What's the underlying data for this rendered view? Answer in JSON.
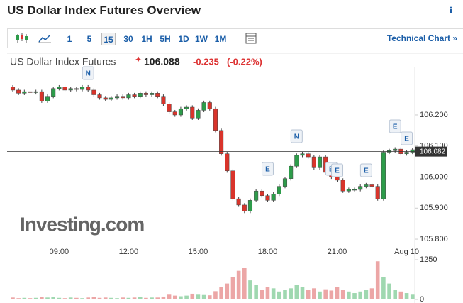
{
  "toolbar": {
    "intervals": [
      "1",
      "5",
      "15",
      "30",
      "1H",
      "5H",
      "1D",
      "1W",
      "1M"
    ],
    "selected": "15",
    "technical_chart": "Technical Chart »"
  },
  "chart_data": {
    "type": "candlestick",
    "title": "US Dollar Index Futures Overview",
    "instrument": "US Dollar Index Futures",
    "price": 106.088,
    "change": -0.235,
    "change_percent": {
      "value": -0.22,
      "label": "(-0.22%)"
    },
    "last_price_label": {
      "value": 106.082,
      "label": "106.082"
    },
    "watermark": "Investing.com",
    "up_color": "#2d9c4a",
    "down_color": "#d9342b",
    "volume_up_color": "#9fd8b0",
    "volume_down_color": "#eca6a6",
    "categories": [
      null,
      null,
      null,
      null,
      null,
      null,
      null,
      null,
      "09:00",
      null,
      null,
      null,
      null,
      null,
      null,
      null,
      null,
      null,
      null,
      null,
      "12:00",
      null,
      null,
      null,
      null,
      null,
      null,
      null,
      null,
      null,
      null,
      null,
      "15:00",
      null,
      null,
      null,
      null,
      null,
      null,
      null,
      null,
      null,
      null,
      null,
      "18:00",
      null,
      null,
      null,
      null,
      null,
      null,
      null,
      null,
      null,
      null,
      null,
      "21:00",
      null,
      null,
      null,
      null,
      null,
      null,
      null,
      null,
      null,
      null,
      null,
      "Aug 10",
      null
    ],
    "open": [
      106.29,
      106.28,
      106.27,
      106.275,
      106.272,
      106.275,
      106.245,
      106.26,
      106.285,
      106.29,
      106.28,
      106.285,
      106.282,
      106.29,
      106.28,
      106.265,
      106.255,
      106.25,
      106.255,
      106.26,
      106.255,
      106.265,
      106.26,
      106.27,
      106.265,
      106.27,
      106.26,
      106.235,
      106.21,
      106.2,
      106.22,
      106.225,
      106.19,
      106.215,
      106.24,
      106.22,
      106.15,
      106.075,
      106.02,
      105.93,
      105.91,
      105.89,
      105.925,
      105.955,
      105.94,
      105.925,
      105.945,
      105.97,
      105.995,
      106.035,
      106.07,
      106.075,
      106.065,
      106.03,
      106.065,
      106.015,
      106.0,
      105.99,
      105.955,
      105.96,
      105.96,
      105.97,
      105.975,
      105.97,
      105.93,
      106.08,
      106.085,
      106.09,
      106.075,
      106.08
    ],
    "high": [
      106.296,
      106.286,
      106.281,
      106.281,
      106.281,
      106.281,
      106.266,
      106.291,
      106.296,
      106.296,
      106.291,
      106.291,
      106.296,
      106.296,
      106.286,
      106.271,
      106.261,
      106.261,
      106.266,
      106.266,
      106.271,
      106.271,
      106.276,
      106.276,
      106.276,
      106.276,
      106.266,
      106.241,
      106.216,
      106.226,
      106.231,
      106.231,
      106.221,
      106.246,
      106.246,
      106.226,
      106.156,
      106.081,
      106.026,
      105.936,
      105.916,
      105.931,
      105.961,
      105.961,
      105.946,
      105.951,
      105.976,
      106.001,
      106.041,
      106.076,
      106.081,
      106.081,
      106.071,
      106.071,
      106.071,
      106.021,
      106.006,
      105.996,
      105.966,
      105.966,
      105.976,
      105.981,
      105.981,
      105.976,
      106.086,
      106.091,
      106.096,
      106.096,
      106.086,
      106.094
    ],
    "low": [
      106.274,
      106.264,
      106.264,
      106.266,
      106.266,
      106.239,
      106.239,
      106.254,
      106.279,
      106.274,
      106.274,
      106.276,
      106.276,
      106.274,
      106.259,
      106.249,
      106.244,
      106.244,
      106.249,
      106.249,
      106.249,
      106.254,
      106.254,
      106.259,
      106.259,
      106.254,
      106.229,
      106.204,
      106.194,
      106.194,
      106.214,
      106.184,
      106.184,
      106.209,
      106.214,
      106.144,
      106.069,
      106.014,
      105.924,
      105.904,
      105.884,
      105.884,
      105.919,
      105.934,
      105.919,
      105.919,
      105.939,
      105.964,
      105.989,
      106.029,
      106.064,
      106.059,
      106.024,
      106.024,
      106.009,
      105.994,
      105.984,
      105.949,
      105.949,
      105.954,
      105.954,
      105.964,
      105.964,
      105.924,
      105.924,
      106.074,
      106.079,
      106.069,
      106.069,
      106.074
    ],
    "close": [
      106.28,
      106.27,
      106.275,
      106.272,
      106.275,
      106.245,
      106.26,
      106.285,
      106.29,
      106.28,
      106.285,
      106.282,
      106.29,
      106.28,
      106.265,
      106.255,
      106.25,
      106.255,
      106.26,
      106.255,
      106.265,
      106.26,
      106.27,
      106.265,
      106.27,
      106.26,
      106.235,
      106.21,
      106.2,
      106.22,
      106.225,
      106.19,
      106.215,
      106.24,
      106.22,
      106.15,
      106.075,
      106.02,
      105.93,
      105.91,
      105.89,
      105.925,
      105.955,
      105.94,
      105.925,
      105.945,
      105.97,
      105.995,
      106.035,
      106.07,
      106.075,
      106.065,
      106.03,
      106.065,
      106.015,
      106.0,
      105.99,
      105.955,
      105.96,
      105.96,
      105.97,
      105.975,
      105.97,
      105.93,
      106.08,
      106.085,
      106.09,
      106.075,
      106.08,
      106.088
    ],
    "volume": [
      60,
      40,
      50,
      40,
      50,
      80,
      60,
      70,
      50,
      40,
      60,
      50,
      40,
      60,
      70,
      50,
      60,
      50,
      40,
      60,
      50,
      60,
      70,
      50,
      60,
      60,
      90,
      150,
      120,
      100,
      120,
      180,
      150,
      140,
      130,
      260,
      380,
      500,
      700,
      900,
      1000,
      600,
      450,
      300,
      400,
      350,
      250,
      300,
      350,
      450,
      400,
      300,
      350,
      250,
      320,
      280,
      400,
      300,
      250,
      200,
      250,
      300,
      350,
      1200,
      700,
      500,
      300,
      250,
      200,
      150
    ],
    "events": [
      "N",
      "E",
      "N",
      "E",
      "E",
      "E",
      "E",
      "E"
    ],
    "ylim": [
      105.759,
      106.353
    ],
    "yticks": [
      {
        "value": 105.8,
        "label": "105.800"
      },
      {
        "value": 105.9,
        "label": "105.900"
      },
      {
        "value": 106.0,
        "label": "106.000"
      },
      {
        "value": 106.1,
        "label": "106.100"
      },
      {
        "value": 106.2,
        "label": "106.200"
      }
    ],
    "volume_ylim": [
      0,
      1250
    ],
    "volume_yticks": [
      0,
      1250
    ]
  }
}
